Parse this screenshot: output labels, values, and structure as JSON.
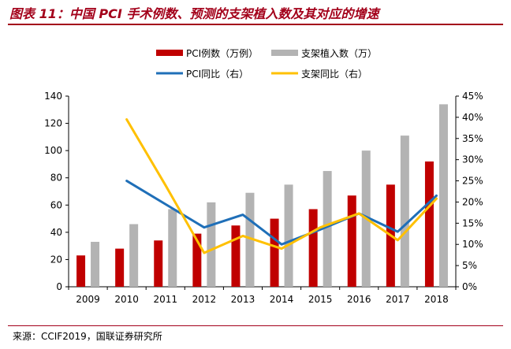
{
  "figure": {
    "title": "图表 11：中国 PCI 手术例数、预测的支架植入数及其对应的增速",
    "source": "来源：CCIF2019，国联证券研究所"
  },
  "chart_data": {
    "type": "bar",
    "categories": [
      "2009",
      "2010",
      "2011",
      "2012",
      "2013",
      "2014",
      "2015",
      "2016",
      "2017",
      "2018"
    ],
    "series": [
      {
        "name": "PCI例数（万例）",
        "type": "bar",
        "axis": "left",
        "color": "#c00000",
        "values": [
          23,
          28,
          34,
          39,
          45,
          50,
          57,
          67,
          75,
          92
        ]
      },
      {
        "name": "支架植入数（万）",
        "type": "bar",
        "axis": "left",
        "color": "#b3b3b3",
        "values": [
          33,
          46,
          57,
          62,
          69,
          75,
          85,
          100,
          111,
          134
        ]
      },
      {
        "name": "PCI同比（右）",
        "type": "line",
        "axis": "right",
        "color": "#1f6fb8",
        "values": [
          null,
          25.0,
          19.5,
          14.0,
          17.0,
          10.0,
          13.5,
          17.3,
          13.0,
          21.5
        ]
      },
      {
        "name": "支架同比（右）",
        "type": "line",
        "axis": "right",
        "color": "#ffc000",
        "values": [
          null,
          39.5,
          24.0,
          8.0,
          12.0,
          9.0,
          14.0,
          17.3,
          11.0,
          20.8
        ]
      }
    ],
    "y_left": {
      "min": 0,
      "max": 140,
      "step": 20
    },
    "y_right": {
      "min": 0,
      "max": 45,
      "step": 5,
      "suffix": "%"
    },
    "grid": false,
    "legend_position": "top-center"
  }
}
